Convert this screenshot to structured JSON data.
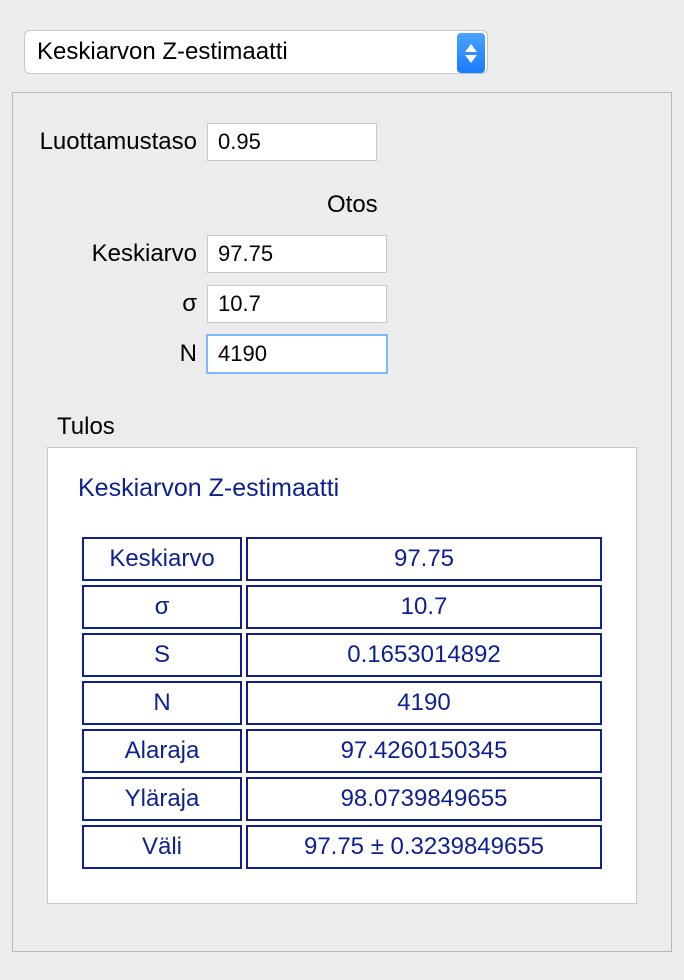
{
  "select": {
    "selected_label": "Keskiarvon Z-estimaatti"
  },
  "fields": {
    "confidence_label": "Luottamustaso",
    "confidence_value": "0.95",
    "sample_header": "Otos",
    "mean_label": "Keskiarvo",
    "mean_value": "97.75",
    "sigma_label": "σ",
    "sigma_value": "10.7",
    "n_label": "N",
    "n_value": "4190"
  },
  "result": {
    "section_label": "Tulos",
    "title": "Keskiarvon Z-estimaatti",
    "rows": [
      {
        "key": "Keskiarvo",
        "value": "97.75"
      },
      {
        "key": "σ",
        "value": "10.7"
      },
      {
        "key": "S",
        "value": "0.1653014892"
      },
      {
        "key": "N",
        "value": "4190"
      },
      {
        "key": "Alaraja",
        "value": "97.4260150345"
      },
      {
        "key": "Yläraja",
        "value": "98.0739849655"
      },
      {
        "key": "Väli",
        "value": "97.75 ± 0.3239849655"
      }
    ]
  },
  "colors": {
    "panel_bg": "#ececec",
    "border": "#b8b8b8",
    "input_border": "#c7c7c7",
    "focus_ring": "#7bb8ff",
    "result_ink": "#0e1f8f",
    "select_blue_top": "#4aa4ff",
    "select_blue_bottom": "#1a7bff"
  }
}
